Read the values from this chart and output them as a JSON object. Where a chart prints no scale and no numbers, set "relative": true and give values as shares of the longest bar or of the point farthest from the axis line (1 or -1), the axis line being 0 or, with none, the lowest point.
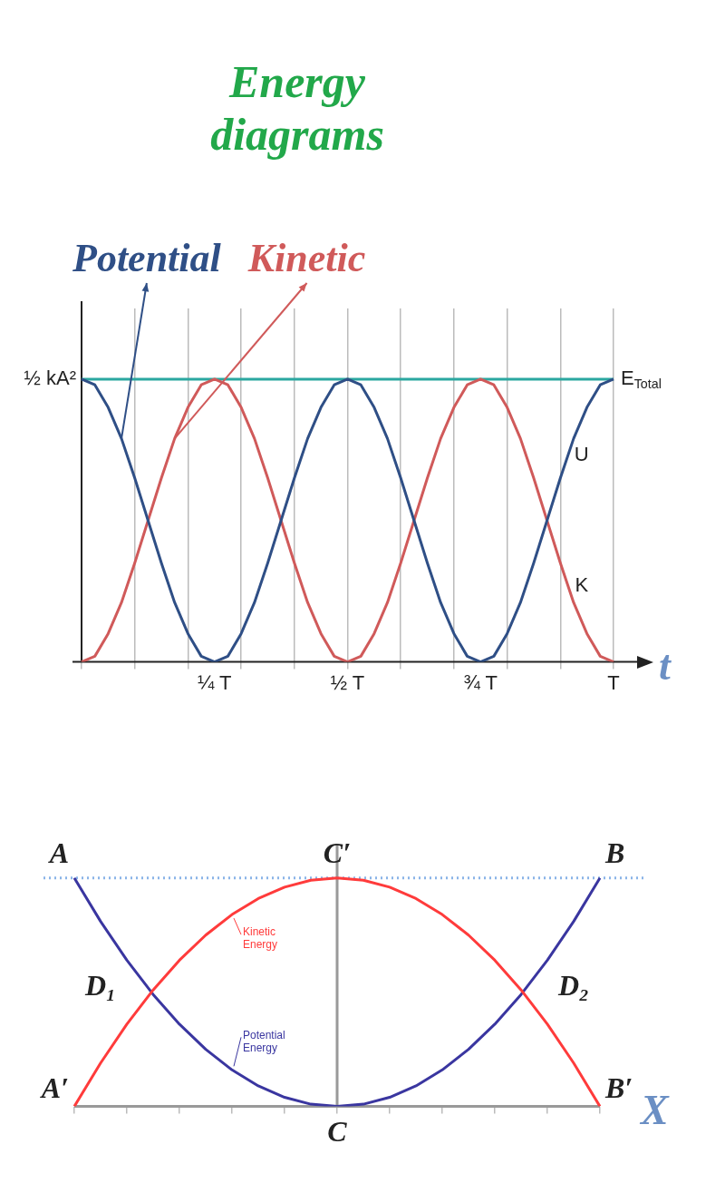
{
  "chart_data": [
    {
      "type": "line",
      "title": "Energy diagrams",
      "relative": true,
      "legend": "top left",
      "grid": "x",
      "marker": "none",
      "line_style": "solid",
      "xlabel": "t",
      "categories": [
        null,
        null,
        null,
        null,
        null,
        null,
        null,
        null,
        null,
        null,
        "¼ T",
        null,
        null,
        null,
        null,
        null,
        null,
        null,
        null,
        null,
        "½ T",
        null,
        null,
        null,
        null,
        null,
        null,
        null,
        null,
        null,
        "¾ T",
        null,
        null,
        null,
        null,
        null,
        null,
        null,
        null,
        null,
        "T"
      ],
      "series": [
        {
          "name": "Potential",
          "color": "#2f4f86",
          "values": [
            1,
            0.98,
            0.9,
            0.79,
            0.65,
            0.5,
            0.35,
            0.21,
            0.1,
            0.02,
            0,
            0.02,
            0.1,
            0.21,
            0.35,
            0.5,
            0.65,
            0.79,
            0.9,
            0.98,
            1,
            0.98,
            0.9,
            0.79,
            0.65,
            0.5,
            0.35,
            0.21,
            0.1,
            0.02,
            0,
            0.02,
            0.1,
            0.21,
            0.35,
            0.5,
            0.65,
            0.79,
            0.9,
            0.98,
            1
          ]
        },
        {
          "name": "Kinetic",
          "color": "#d05a5a",
          "values": [
            0,
            0.02,
            0.1,
            0.21,
            0.35,
            0.5,
            0.65,
            0.79,
            0.9,
            0.98,
            1,
            0.98,
            0.9,
            0.79,
            0.65,
            0.5,
            0.35,
            0.21,
            0.1,
            0.02,
            0,
            0.02,
            0.1,
            0.21,
            0.35,
            0.5,
            0.65,
            0.79,
            0.9,
            0.98,
            1,
            0.98,
            0.9,
            0.79,
            0.65,
            0.5,
            0.35,
            0.21,
            0.1,
            0.02,
            0
          ]
        }
      ],
      "ref_lines": [
        {
          "axis": "y",
          "value": 1,
          "label": "E$_{Total}$",
          "color": "#2aa7a0",
          "line_style": "solid"
        }
      ],
      "annotations": [
        "½ kA²",
        "U",
        "K"
      ]
    },
    {
      "type": "line",
      "relative": true,
      "legend": "left",
      "grid": false,
      "marker": "none",
      "line_style": "solid",
      "xlabel": "X",
      "categories": [
        null,
        null,
        null,
        null,
        null,
        null,
        null,
        null,
        null,
        null,
        null,
        null,
        null,
        null,
        null,
        null,
        null,
        null,
        null,
        null,
        null
      ],
      "series": [
        {
          "name": "Kinetic Energy",
          "color": "#ff3b3b",
          "values": [
            0,
            0.19,
            0.36,
            0.51,
            0.64,
            0.75,
            0.84,
            0.91,
            0.96,
            0.99,
            1,
            0.99,
            0.96,
            0.91,
            0.84,
            0.75,
            0.64,
            0.51,
            0.36,
            0.19,
            0
          ]
        },
        {
          "name": "Potential Energy",
          "color": "#3a36a0",
          "values": [
            1,
            0.81,
            0.64,
            0.49,
            0.36,
            0.25,
            0.16,
            0.09,
            0.04,
            0.01,
            0,
            0.01,
            0.04,
            0.09,
            0.16,
            0.25,
            0.36,
            0.49,
            0.64,
            0.81,
            1
          ]
        }
      ],
      "ref_lines": [
        {
          "axis": "y",
          "value": 1,
          "label": null,
          "color": "#8ab4e8",
          "line_style": "dotted"
        }
      ],
      "annotations": [
        "A",
        "C′",
        "B",
        "D₁",
        "D₂",
        "A′",
        "B′",
        "C"
      ]
    }
  ]
}
